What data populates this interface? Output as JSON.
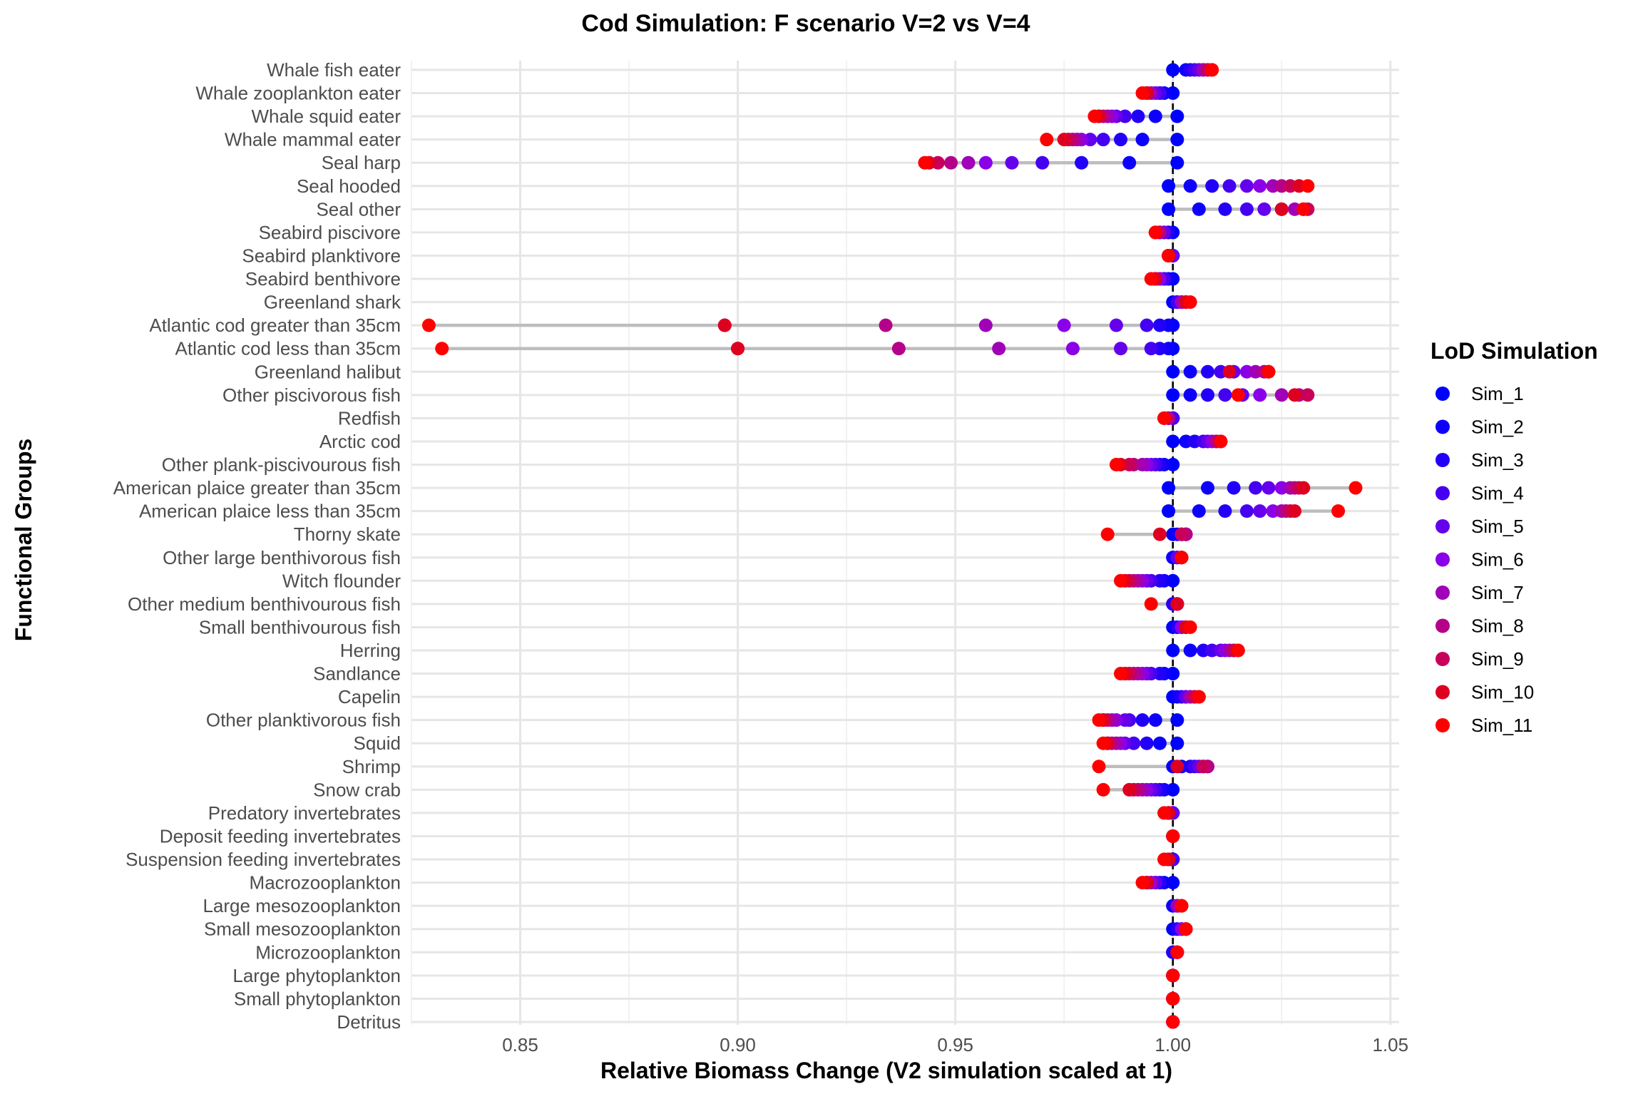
{
  "chart_data": {
    "type": "scatter",
    "title": "Cod Simulation: F scenario V=2 vs V=4",
    "xlabel": "Relative Biomass Change (V2 simulation scaled at 1)",
    "ylabel": "Functional Groups",
    "xlim": [
      0.825,
      1.052
    ],
    "xticks": [
      0.85,
      0.9,
      0.95,
      1.0,
      1.05
    ],
    "xtick_labels": [
      "0.85",
      "0.90",
      "0.95",
      "1.00",
      "1.05"
    ],
    "reference_line": 1.0,
    "grid": true,
    "legend": {
      "title": "LoD Simulation",
      "position": "right"
    },
    "series_names": [
      "Sim_1",
      "Sim_2",
      "Sim_3",
      "Sim_4",
      "Sim_5",
      "Sim_6",
      "Sim_7",
      "Sim_8",
      "Sim_9",
      "Sim_10",
      "Sim_11"
    ],
    "series_colors": [
      "#0000FF",
      "#0D00FD",
      "#2200F8",
      "#4500F2",
      "#6500EC",
      "#8A00E8",
      "#A000B8",
      "#B5008A",
      "#C8005A",
      "#DE0020",
      "#FF0000"
    ],
    "groups": [
      {
        "name": "Whale fish eater",
        "values": [
          1.0,
          1.003,
          1.004,
          1.005,
          1.006,
          1.007,
          1.007,
          1.008,
          1.008,
          1.009,
          1.009
        ]
      },
      {
        "name": "Whale zooplankton eater",
        "values": [
          1.0,
          0.998,
          0.997,
          0.997,
          0.996,
          0.995,
          0.995,
          0.994,
          0.994,
          0.994,
          0.993
        ]
      },
      {
        "name": "Whale squid eater",
        "values": [
          1.001,
          0.996,
          0.992,
          0.989,
          0.987,
          0.986,
          0.985,
          0.984,
          0.983,
          0.983,
          0.982
        ]
      },
      {
        "name": "Whale mammal eater",
        "values": [
          1.001,
          0.993,
          0.988,
          0.984,
          0.981,
          0.979,
          0.978,
          0.977,
          0.976,
          0.975,
          0.971
        ]
      },
      {
        "name": "Seal harp",
        "values": [
          1.001,
          0.99,
          0.979,
          0.97,
          0.963,
          0.957,
          0.953,
          0.949,
          0.946,
          0.944,
          0.943
        ]
      },
      {
        "name": "Seal hooded",
        "values": [
          0.999,
          1.004,
          1.009,
          1.013,
          1.017,
          1.02,
          1.023,
          1.025,
          1.027,
          1.029,
          1.031
        ]
      },
      {
        "name": "Seal other",
        "values": [
          0.999,
          1.006,
          1.012,
          1.017,
          1.021,
          1.025,
          1.028,
          1.03,
          1.031,
          1.025,
          1.03
        ]
      },
      {
        "name": "Seabird piscivore",
        "values": [
          1.0,
          0.999,
          0.999,
          0.998,
          0.998,
          0.997,
          0.997,
          0.997,
          0.996,
          0.996,
          0.996
        ]
      },
      {
        "name": "Seabird planktivore",
        "values": [
          1.0,
          1.0,
          1.0,
          1.0,
          1.0,
          0.999,
          0.999,
          0.999,
          0.999,
          0.999,
          0.999
        ]
      },
      {
        "name": "Seabird benthivore",
        "values": [
          1.0,
          0.999,
          0.998,
          0.998,
          0.997,
          0.997,
          0.996,
          0.996,
          0.996,
          0.996,
          0.995
        ]
      },
      {
        "name": "Greenland shark",
        "values": [
          1.0,
          1.001,
          1.001,
          1.001,
          1.002,
          1.002,
          1.002,
          1.003,
          1.003,
          1.003,
          1.004
        ]
      },
      {
        "name": "Atlantic cod greater than 35cm",
        "values": [
          1.0,
          0.999,
          0.997,
          0.994,
          0.987,
          0.975,
          0.957,
          0.934,
          0.897,
          0.897,
          0.829
        ]
      },
      {
        "name": "Atlantic cod less than 35cm",
        "values": [
          1.0,
          0.999,
          0.997,
          0.995,
          0.988,
          0.977,
          0.96,
          0.937,
          0.9,
          0.9,
          0.832
        ]
      },
      {
        "name": "Greenland halibut",
        "values": [
          1.0,
          1.004,
          1.008,
          1.011,
          1.014,
          1.017,
          1.019,
          1.021,
          1.022,
          1.013,
          1.022
        ]
      },
      {
        "name": "Other piscivorous fish",
        "values": [
          1.0,
          1.004,
          1.008,
          1.012,
          1.016,
          1.02,
          1.025,
          1.029,
          1.031,
          1.028,
          1.015
        ]
      },
      {
        "name": "Redfish",
        "values": [
          1.0,
          1.0,
          1.0,
          1.0,
          0.999,
          0.999,
          0.999,
          0.999,
          0.998,
          0.998,
          0.998
        ]
      },
      {
        "name": "Arctic cod",
        "values": [
          1.0,
          1.003,
          1.005,
          1.007,
          1.008,
          1.009,
          1.01,
          1.01,
          1.011,
          1.011,
          1.011
        ]
      },
      {
        "name": "Other plank-piscivourous fish",
        "values": [
          1.0,
          0.998,
          0.997,
          0.996,
          0.995,
          0.994,
          0.993,
          0.991,
          0.99,
          0.988,
          0.987
        ]
      },
      {
        "name": "American plaice greater than 35cm",
        "values": [
          0.999,
          1.008,
          1.014,
          1.019,
          1.022,
          1.025,
          1.027,
          1.028,
          1.029,
          1.03,
          1.042
        ]
      },
      {
        "name": "American plaice less than 35cm",
        "values": [
          0.999,
          1.006,
          1.012,
          1.017,
          1.02,
          1.023,
          1.025,
          1.026,
          1.027,
          1.028,
          1.038
        ]
      },
      {
        "name": "Thorny skate",
        "values": [
          1.0,
          1.001,
          1.002,
          1.002,
          1.003,
          1.003,
          1.003,
          1.003,
          1.002,
          0.997,
          0.985
        ]
      },
      {
        "name": "Other large benthivorous fish",
        "values": [
          1.0,
          1.0,
          1.001,
          1.001,
          1.001,
          1.002,
          1.002,
          1.002,
          1.002,
          1.002,
          1.002
        ]
      },
      {
        "name": "Witch flounder",
        "values": [
          1.0,
          0.998,
          0.997,
          0.995,
          0.994,
          0.993,
          0.992,
          0.991,
          0.99,
          0.989,
          0.988
        ]
      },
      {
        "name": "Other medium benthivourous fish",
        "values": [
          1.0,
          1.0,
          1.0,
          1.001,
          1.001,
          1.001,
          1.001,
          1.001,
          1.001,
          1.001,
          0.995
        ]
      },
      {
        "name": "Small benthivourous fish",
        "values": [
          1.0,
          1.001,
          1.001,
          1.002,
          1.002,
          1.002,
          1.003,
          1.003,
          1.003,
          1.003,
          1.004
        ]
      },
      {
        "name": "Herring",
        "values": [
          1.0,
          1.004,
          1.007,
          1.009,
          1.011,
          1.012,
          1.013,
          1.014,
          1.014,
          1.015,
          1.015
        ]
      },
      {
        "name": "Sandlance",
        "values": [
          1.0,
          0.998,
          0.997,
          0.995,
          0.994,
          0.993,
          0.992,
          0.991,
          0.99,
          0.989,
          0.988
        ]
      },
      {
        "name": "Capelin",
        "values": [
          1.0,
          1.001,
          1.002,
          1.003,
          1.003,
          1.004,
          1.004,
          1.005,
          1.005,
          1.006,
          1.006
        ]
      },
      {
        "name": "Other planktivorous fish",
        "values": [
          1.001,
          0.996,
          0.993,
          0.99,
          0.989,
          0.987,
          0.986,
          0.985,
          0.984,
          0.984,
          0.983
        ]
      },
      {
        "name": "Squid",
        "values": [
          1.001,
          0.997,
          0.994,
          0.991,
          0.989,
          0.988,
          0.987,
          0.986,
          0.985,
          0.985,
          0.984
        ]
      },
      {
        "name": "Shrimp",
        "values": [
          1.0,
          1.002,
          1.004,
          1.005,
          1.006,
          1.007,
          1.008,
          1.008,
          1.007,
          1.001,
          0.983
        ]
      },
      {
        "name": "Snow crab",
        "values": [
          1.0,
          0.998,
          0.997,
          0.996,
          0.995,
          0.994,
          0.993,
          0.992,
          0.991,
          0.99,
          0.984
        ]
      },
      {
        "name": "Predatory invertebrates",
        "values": [
          1.0,
          1.0,
          1.0,
          1.0,
          1.0,
          0.999,
          0.999,
          0.999,
          0.999,
          0.999,
          0.998
        ]
      },
      {
        "name": "Deposit feeding invertebrates",
        "values": [
          1.0,
          1.0,
          1.0,
          1.0,
          1.0,
          1.0,
          1.0,
          1.0,
          1.0,
          1.0,
          1.0
        ]
      },
      {
        "name": "Suspension feeding invertebrates",
        "values": [
          1.0,
          1.0,
          1.0,
          1.0,
          0.999,
          0.999,
          0.999,
          0.999,
          0.999,
          0.999,
          0.998
        ]
      },
      {
        "name": "Macrozooplankton",
        "values": [
          1.0,
          0.998,
          0.997,
          0.996,
          0.996,
          0.995,
          0.995,
          0.994,
          0.994,
          0.994,
          0.993
        ]
      },
      {
        "name": "Large mesozooplankton",
        "values": [
          1.0,
          1.0,
          1.001,
          1.001,
          1.001,
          1.001,
          1.001,
          1.002,
          1.002,
          1.002,
          1.002
        ]
      },
      {
        "name": "Small mesozooplankton",
        "values": [
          1.0,
          1.001,
          1.001,
          1.002,
          1.002,
          1.002,
          1.003,
          1.003,
          1.003,
          1.003,
          1.003
        ]
      },
      {
        "name": "Microzooplankton",
        "values": [
          1.0,
          1.0,
          1.0,
          1.001,
          1.001,
          1.001,
          1.001,
          1.001,
          1.001,
          1.001,
          1.001
        ]
      },
      {
        "name": "Large phytoplankton",
        "values": [
          1.0,
          1.0,
          1.0,
          1.0,
          1.0,
          1.0,
          1.0,
          1.0,
          1.0,
          1.0,
          1.0
        ]
      },
      {
        "name": "Small phytoplankton",
        "values": [
          1.0,
          1.0,
          1.0,
          1.0,
          1.0,
          1.0,
          1.0,
          1.0,
          1.0,
          1.0,
          1.0
        ]
      },
      {
        "name": "Detritus",
        "values": [
          1.0,
          1.0,
          1.0,
          1.0,
          1.0,
          1.0,
          1.0,
          1.0,
          1.0,
          1.0,
          1.0
        ]
      }
    ]
  }
}
